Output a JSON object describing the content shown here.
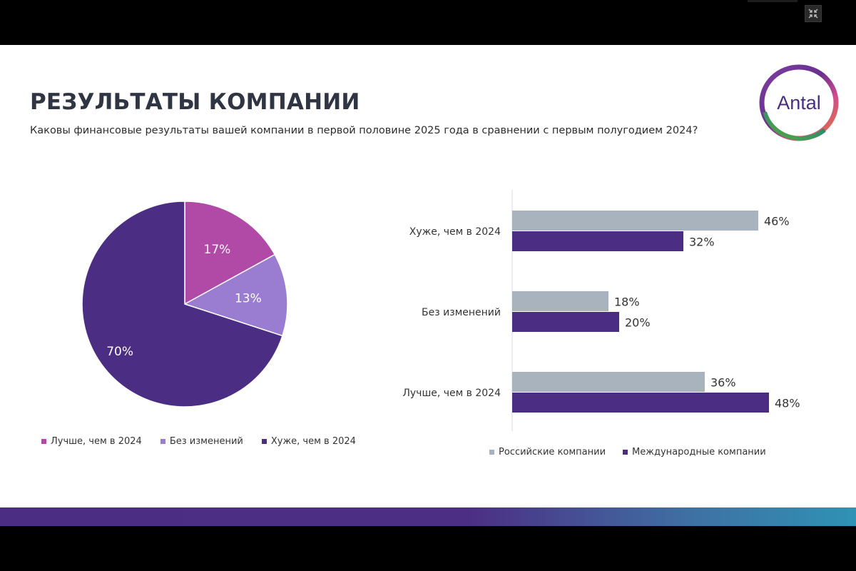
{
  "slide": {
    "title": "РЕЗУЛЬТАТЫ КОМПАНИИ",
    "subtitle": "Каковы финансовые результаты вашей компании в первой половине 2025 года в сравнении с первым полугодием 2024?",
    "logo_text": "Antal"
  },
  "colors": {
    "better": "#b04aa6",
    "no_change": "#9a7cd1",
    "worse": "#4b2e83",
    "russian": "#a9b3be",
    "international": "#4b2e83"
  },
  "chart_data": [
    {
      "type": "pie",
      "categories": [
        "Лучше, чем в 2024",
        "Без изменений",
        "Хуже, чем в 2024"
      ],
      "values": [
        17,
        13,
        70
      ],
      "data_labels": [
        "17%",
        "13%",
        "70%"
      ],
      "legend_position": "bottom"
    },
    {
      "type": "bar",
      "orientation": "horizontal",
      "categories": [
        "Хуже, чем в 2024",
        "Без изменений",
        "Лучше, чем в 2024"
      ],
      "series": [
        {
          "name": "Российские компании",
          "values": [
            46,
            18,
            36
          ],
          "labels": [
            "46%",
            "18%",
            "36%"
          ]
        },
        {
          "name": "Международные компании",
          "values": [
            32,
            20,
            48
          ],
          "labels": [
            "32%",
            "20%",
            "48%"
          ]
        }
      ],
      "xlim": [
        0,
        60
      ],
      "legend_position": "bottom"
    }
  ]
}
